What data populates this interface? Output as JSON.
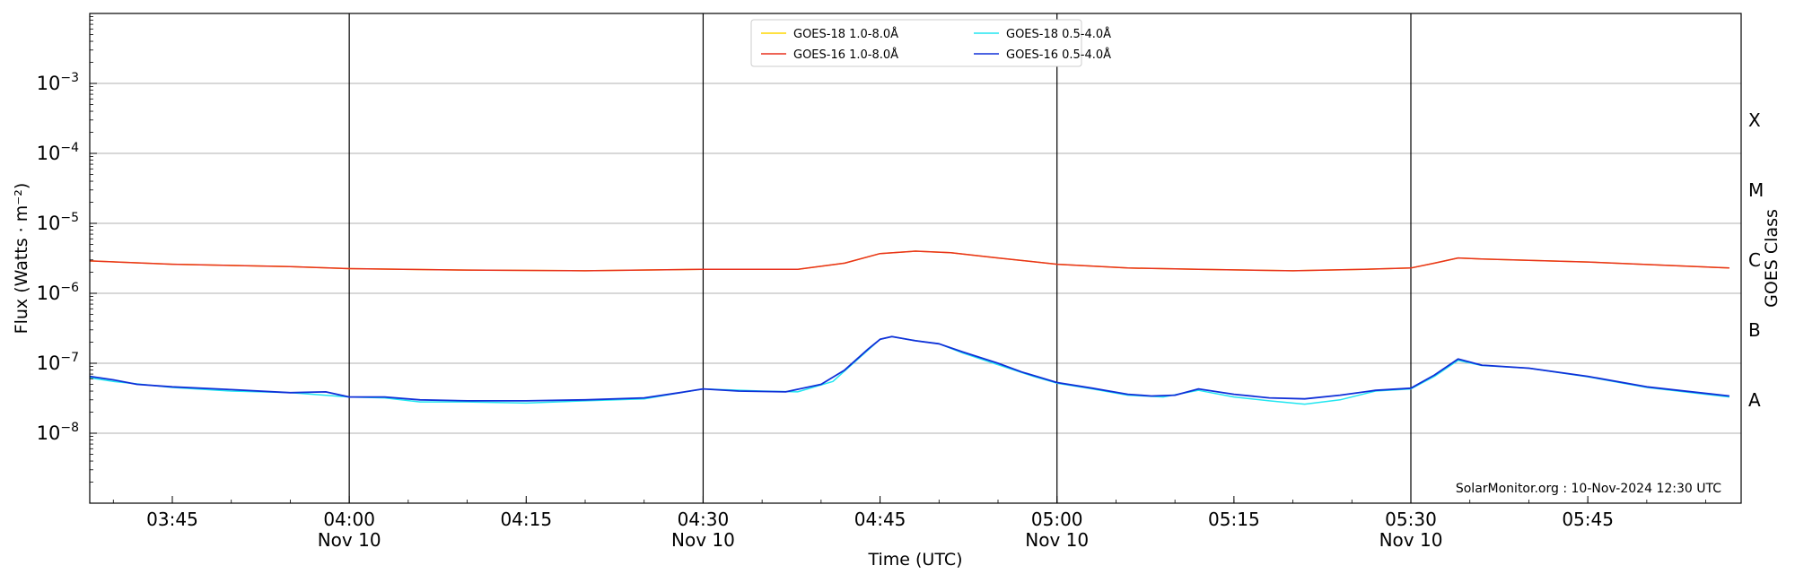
{
  "chart_data": {
    "type": "line",
    "ylabel": "Flux (Watts · m⁻²)",
    "xlabel": "Time (UTC)",
    "right_ylabel": "GOES Class",
    "y_scale": "log",
    "ylim": [
      1e-09,
      0.01
    ],
    "xlim": [
      "03:38",
      "05:58"
    ],
    "grid": "horizontal",
    "legend_position": "top-center",
    "watermark": "SolarMonitor.org : 10-Nov-2024 12:30 UTC",
    "y_ticks": [
      {
        "value": 0.001,
        "mant": "10",
        "exp": "−3"
      },
      {
        "value": 0.0001,
        "mant": "10",
        "exp": "−4"
      },
      {
        "value": 1e-05,
        "mant": "10",
        "exp": "−5"
      },
      {
        "value": 1e-06,
        "mant": "10",
        "exp": "−6"
      },
      {
        "value": 1e-07,
        "mant": "10",
        "exp": "−7"
      },
      {
        "value": 1e-08,
        "mant": "10",
        "exp": "−8"
      }
    ],
    "x_ticks": [
      {
        "time": "03:45",
        "label": "03:45",
        "sublabel": ""
      },
      {
        "time": "04:00",
        "label": "04:00",
        "sublabel": "Nov 10"
      },
      {
        "time": "04:15",
        "label": "04:15",
        "sublabel": ""
      },
      {
        "time": "04:30",
        "label": "04:30",
        "sublabel": "Nov 10"
      },
      {
        "time": "04:45",
        "label": "04:45",
        "sublabel": ""
      },
      {
        "time": "05:00",
        "label": "05:00",
        "sublabel": "Nov 10"
      },
      {
        "time": "05:15",
        "label": "05:15",
        "sublabel": ""
      },
      {
        "time": "05:30",
        "label": "05:30",
        "sublabel": "Nov 10"
      },
      {
        "time": "05:45",
        "label": "05:45",
        "sublabel": ""
      }
    ],
    "vertical_lines": [
      "04:00",
      "04:30",
      "05:00",
      "05:30"
    ],
    "classes": [
      {
        "label": "X",
        "value": 0.0003
      },
      {
        "label": "M",
        "value": 3e-05
      },
      {
        "label": "C",
        "value": 3e-06
      },
      {
        "label": "B",
        "value": 3e-07
      },
      {
        "label": "A",
        "value": 3e-08
      }
    ],
    "series": [
      {
        "name": "GOES-18 1.0-8.0Å",
        "color": "#ffd700",
        "points": [
          [
            "03:38",
            2.9e-06
          ],
          [
            "03:45",
            2.6e-06
          ],
          [
            "03:55",
            2.4e-06
          ],
          [
            "04:00",
            2.25e-06
          ],
          [
            "04:10",
            2.15e-06
          ],
          [
            "04:20",
            2.1e-06
          ],
          [
            "04:30",
            2.2e-06
          ],
          [
            "04:38",
            2.2e-06
          ],
          [
            "04:42",
            2.7e-06
          ],
          [
            "04:45",
            3.7e-06
          ],
          [
            "04:48",
            4e-06
          ],
          [
            "04:51",
            3.8e-06
          ],
          [
            "04:55",
            3.2e-06
          ],
          [
            "05:00",
            2.6e-06
          ],
          [
            "05:06",
            2.3e-06
          ],
          [
            "05:12",
            2.2e-06
          ],
          [
            "05:20",
            2.1e-06
          ],
          [
            "05:26",
            2.2e-06
          ],
          [
            "05:30",
            2.3e-06
          ],
          [
            "05:32",
            2.7e-06
          ],
          [
            "05:34",
            3.2e-06
          ],
          [
            "05:36",
            3.1e-06
          ],
          [
            "05:45",
            2.8e-06
          ],
          [
            "05:52",
            2.5e-06
          ],
          [
            "05:57",
            2.3e-06
          ]
        ]
      },
      {
        "name": "GOES-16 1.0-8.0Å",
        "color": "#e8311f",
        "points": [
          [
            "03:38",
            2.9e-06
          ],
          [
            "03:45",
            2.6e-06
          ],
          [
            "03:55",
            2.4e-06
          ],
          [
            "04:00",
            2.25e-06
          ],
          [
            "04:10",
            2.15e-06
          ],
          [
            "04:20",
            2.1e-06
          ],
          [
            "04:30",
            2.2e-06
          ],
          [
            "04:38",
            2.2e-06
          ],
          [
            "04:42",
            2.7e-06
          ],
          [
            "04:45",
            3.7e-06
          ],
          [
            "04:48",
            4e-06
          ],
          [
            "04:51",
            3.8e-06
          ],
          [
            "04:55",
            3.2e-06
          ],
          [
            "05:00",
            2.6e-06
          ],
          [
            "05:06",
            2.3e-06
          ],
          [
            "05:12",
            2.2e-06
          ],
          [
            "05:20",
            2.1e-06
          ],
          [
            "05:26",
            2.2e-06
          ],
          [
            "05:30",
            2.3e-06
          ],
          [
            "05:32",
            2.7e-06
          ],
          [
            "05:34",
            3.2e-06
          ],
          [
            "05:36",
            3.1e-06
          ],
          [
            "05:45",
            2.8e-06
          ],
          [
            "05:52",
            2.5e-06
          ],
          [
            "05:57",
            2.3e-06
          ]
        ]
      },
      {
        "name": "GOES-18 0.5-4.0Å",
        "color": "#22e6f0",
        "points": [
          [
            "03:38",
            6.2e-08
          ],
          [
            "03:40",
            5.5e-08
          ],
          [
            "03:45",
            4.5e-08
          ],
          [
            "03:50",
            4e-08
          ],
          [
            "03:55",
            3.8e-08
          ],
          [
            "04:00",
            3.3e-08
          ],
          [
            "04:03",
            3.2e-08
          ],
          [
            "04:06",
            2.8e-08
          ],
          [
            "04:10",
            2.8e-08
          ],
          [
            "04:15",
            2.7e-08
          ],
          [
            "04:20",
            2.9e-08
          ],
          [
            "04:25",
            3.1e-08
          ],
          [
            "04:30",
            4.3e-08
          ],
          [
            "04:35",
            4e-08
          ],
          [
            "04:38",
            3.9e-08
          ],
          [
            "04:41",
            5.5e-08
          ],
          [
            "04:43",
            1.1e-07
          ],
          [
            "04:45",
            2.2e-07
          ],
          [
            "04:46",
            2.4e-07
          ],
          [
            "04:48",
            2.1e-07
          ],
          [
            "04:50",
            1.9e-07
          ],
          [
            "04:52",
            1.4e-07
          ],
          [
            "04:55",
            9.5e-08
          ],
          [
            "04:58",
            6.5e-08
          ],
          [
            "05:00",
            5.2e-08
          ],
          [
            "05:03",
            4.3e-08
          ],
          [
            "05:06",
            3.5e-08
          ],
          [
            "05:09",
            3.3e-08
          ],
          [
            "05:12",
            4.1e-08
          ],
          [
            "05:15",
            3.3e-08
          ],
          [
            "05:18",
            2.9e-08
          ],
          [
            "05:21",
            2.6e-08
          ],
          [
            "05:24",
            3e-08
          ],
          [
            "05:27",
            4e-08
          ],
          [
            "05:30",
            4.3e-08
          ],
          [
            "05:32",
            6.5e-08
          ],
          [
            "05:34",
            1.1e-07
          ],
          [
            "05:36",
            9.3e-08
          ],
          [
            "05:40",
            8.5e-08
          ],
          [
            "05:45",
            6.4e-08
          ],
          [
            "05:50",
            4.5e-08
          ],
          [
            "05:57",
            3.3e-08
          ]
        ]
      },
      {
        "name": "GOES-16 0.5-4.0Å",
        "color": "#1030d8",
        "points": [
          [
            "03:38",
            6.5e-08
          ],
          [
            "03:40",
            5.8e-08
          ],
          [
            "03:42",
            5e-08
          ],
          [
            "03:45",
            4.6e-08
          ],
          [
            "03:50",
            4.2e-08
          ],
          [
            "03:55",
            3.8e-08
          ],
          [
            "03:58",
            3.9e-08
          ],
          [
            "04:00",
            3.3e-08
          ],
          [
            "04:03",
            3.3e-08
          ],
          [
            "04:06",
            3e-08
          ],
          [
            "04:10",
            2.9e-08
          ],
          [
            "04:15",
            2.9e-08
          ],
          [
            "04:20",
            3e-08
          ],
          [
            "04:25",
            3.2e-08
          ],
          [
            "04:28",
            3.8e-08
          ],
          [
            "04:30",
            4.3e-08
          ],
          [
            "04:33",
            4e-08
          ],
          [
            "04:37",
            3.9e-08
          ],
          [
            "04:40",
            5e-08
          ],
          [
            "04:42",
            8e-08
          ],
          [
            "04:44",
            1.6e-07
          ],
          [
            "04:45",
            2.2e-07
          ],
          [
            "04:46",
            2.4e-07
          ],
          [
            "04:48",
            2.1e-07
          ],
          [
            "04:50",
            1.9e-07
          ],
          [
            "04:52",
            1.45e-07
          ],
          [
            "04:55",
            1e-07
          ],
          [
            "04:57",
            7.5e-08
          ],
          [
            "05:00",
            5.3e-08
          ],
          [
            "05:03",
            4.4e-08
          ],
          [
            "05:06",
            3.6e-08
          ],
          [
            "05:08",
            3.4e-08
          ],
          [
            "05:10",
            3.5e-08
          ],
          [
            "05:12",
            4.3e-08
          ],
          [
            "05:15",
            3.6e-08
          ],
          [
            "05:18",
            3.2e-08
          ],
          [
            "05:21",
            3.1e-08
          ],
          [
            "05:24",
            3.5e-08
          ],
          [
            "05:27",
            4.1e-08
          ],
          [
            "05:30",
            4.4e-08
          ],
          [
            "05:32",
            6.8e-08
          ],
          [
            "05:34",
            1.15e-07
          ],
          [
            "05:36",
            9.4e-08
          ],
          [
            "05:40",
            8.5e-08
          ],
          [
            "05:45",
            6.5e-08
          ],
          [
            "05:50",
            4.6e-08
          ],
          [
            "05:57",
            3.4e-08
          ]
        ]
      }
    ]
  }
}
